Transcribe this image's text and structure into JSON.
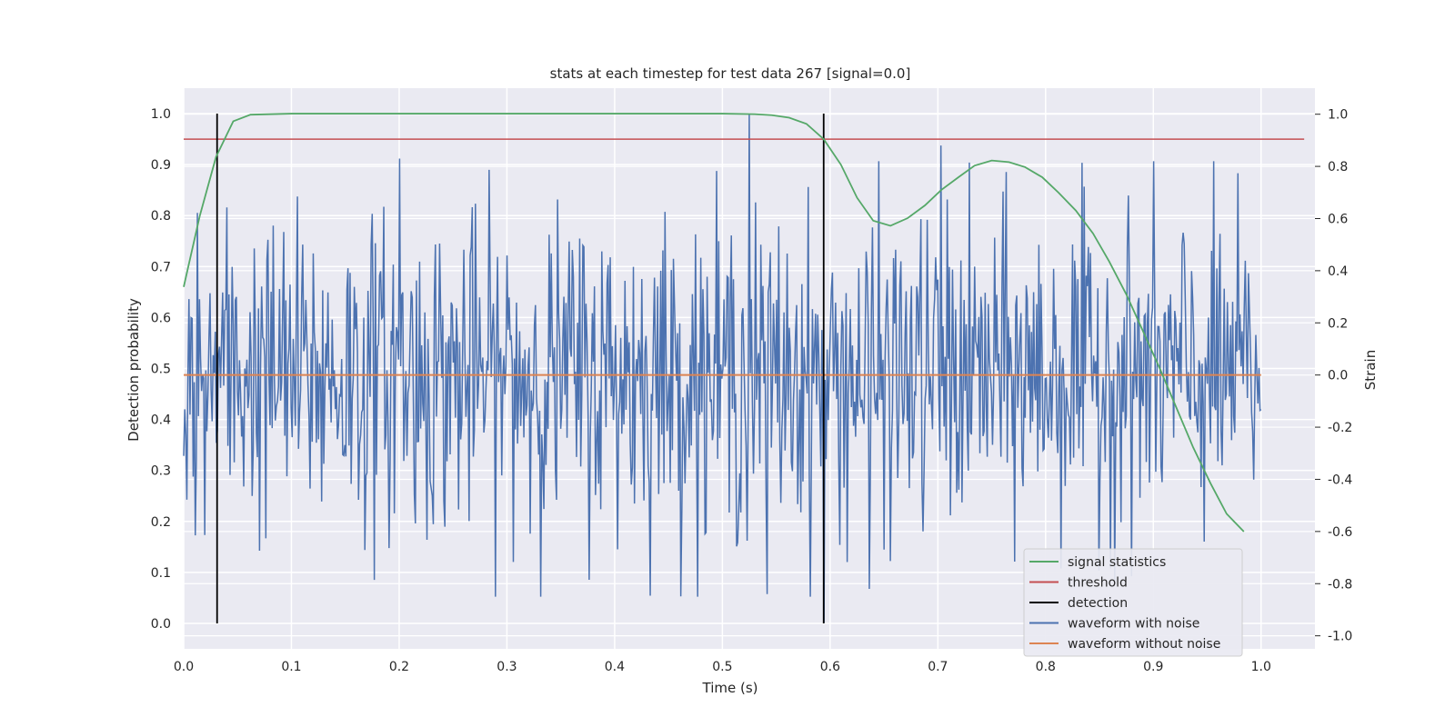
{
  "chart_data": {
    "type": "line",
    "title": "stats at each timestep for test data 267 [signal=0.0]",
    "xlabel": "Time (s)",
    "ylabel_left": "Detection probability",
    "ylabel_right": "Strain",
    "xlim": [
      0.0,
      1.05
    ],
    "ylim_left": [
      -0.05,
      1.05
    ],
    "ylim_right": [
      -1.05,
      1.1
    ],
    "xticks": [
      0.0,
      0.1,
      0.2,
      0.3,
      0.4,
      0.5,
      0.6,
      0.7,
      0.8,
      0.9,
      1.0
    ],
    "yticks_left": [
      0.0,
      0.1,
      0.2,
      0.3,
      0.4,
      0.5,
      0.6,
      0.7,
      0.8,
      0.9,
      1.0
    ],
    "yticks_right": [
      -1.0,
      -0.8,
      -0.6,
      -0.4,
      -0.2,
      0.0,
      0.2,
      0.4,
      0.6,
      0.8,
      1.0
    ],
    "grid": true,
    "legend_position": "bottom-right",
    "colors": {
      "signal_statistics": "#55a868",
      "threshold": "#c44e52",
      "detection": "#000000",
      "waveform_with_noise": "#4c72b0",
      "waveform_without_noise": "#dd8452",
      "plot_background": "#eaeaf2"
    },
    "series": [
      {
        "name": "signal statistics",
        "axis": "left",
        "x": [
          0.0,
          0.015,
          0.03,
          0.046,
          0.062,
          0.1,
          0.2,
          0.3,
          0.4,
          0.5,
          0.53,
          0.546,
          0.562,
          0.578,
          0.594,
          0.61,
          0.625,
          0.64,
          0.656,
          0.672,
          0.688,
          0.703,
          0.719,
          0.734,
          0.75,
          0.766,
          0.781,
          0.797,
          0.812,
          0.828,
          0.844,
          0.859,
          0.875,
          0.89,
          0.906,
          0.922,
          0.937,
          0.953,
          0.968,
          0.984
        ],
        "y": [
          0.66,
          0.8,
          0.915,
          0.985,
          0.998,
          1.0,
          1.0,
          1.0,
          1.0,
          1.0,
          0.999,
          0.997,
          0.992,
          0.98,
          0.95,
          0.9,
          0.835,
          0.79,
          0.78,
          0.795,
          0.82,
          0.85,
          0.875,
          0.898,
          0.908,
          0.905,
          0.895,
          0.875,
          0.845,
          0.81,
          0.765,
          0.71,
          0.645,
          0.575,
          0.5,
          0.42,
          0.345,
          0.275,
          0.215,
          0.18
        ]
      },
      {
        "name": "threshold",
        "axis": "left",
        "x": [
          0.0,
          1.04
        ],
        "y": [
          0.95,
          0.95
        ]
      },
      {
        "name": "detection",
        "axis": "left",
        "events": [
          {
            "x": 0.031,
            "y": [
              0.0,
              1.0
            ]
          },
          {
            "x": 0.594,
            "y": [
              0.0,
              1.0
            ]
          }
        ]
      },
      {
        "name": "waveform with noise",
        "axis": "right",
        "x_range": [
          0.0,
          1.0
        ],
        "n_points": 1024,
        "amplitude_std": 0.3,
        "notable_peaks": [
          {
            "x": 0.2,
            "y": 0.83
          },
          {
            "x": 0.525,
            "y": 1.0
          },
          {
            "x": 0.594,
            "y": -0.95
          },
          {
            "x": 0.703,
            "y": 0.88
          },
          {
            "x": 0.542,
            "y": -0.84
          },
          {
            "x": 0.636,
            "y": -0.82
          }
        ]
      },
      {
        "name": "waveform without noise",
        "axis": "right",
        "x": [
          0.0,
          1.0
        ],
        "y": [
          0.0,
          0.0
        ]
      }
    ],
    "legend": [
      "signal statistics",
      "threshold",
      "detection",
      "waveform with noise",
      "waveform without noise"
    ]
  }
}
